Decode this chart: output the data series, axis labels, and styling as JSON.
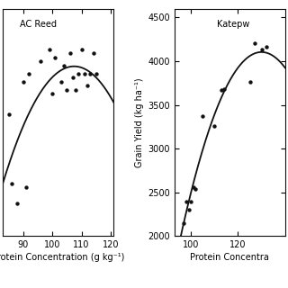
{
  "ac_reed": {
    "label": "AC Reed",
    "x": [
      85,
      86,
      88,
      90,
      91,
      92,
      96,
      99,
      100,
      101,
      103,
      104,
      105,
      106,
      107,
      108,
      109,
      110,
      111,
      112,
      113,
      114,
      115
    ],
    "y": [
      3300,
      2450,
      2200,
      3700,
      2400,
      3800,
      3950,
      4100,
      3550,
      4000,
      3700,
      3900,
      3600,
      4050,
      3750,
      3600,
      3800,
      4100,
      3800,
      3650,
      3800,
      4050,
      3800
    ],
    "xlim": [
      83,
      121
    ],
    "ylim": [
      1800,
      4600
    ],
    "xticks": [
      90,
      100,
      110,
      120
    ],
    "yticks": []
  },
  "katepwa": {
    "label": "Katepw",
    "x": [
      97,
      98,
      99,
      100,
      101,
      102,
      105,
      110,
      113,
      114,
      125,
      127,
      130,
      132
    ],
    "y": [
      2150,
      2400,
      2300,
      2400,
      2560,
      2540,
      3370,
      3260,
      3670,
      3680,
      3760,
      4200,
      4130,
      4160
    ],
    "xlim": [
      93,
      140
    ],
    "ylim": [
      2000,
      4600
    ],
    "xticks": [
      100,
      120
    ],
    "yticks": [
      2000,
      2500,
      3000,
      3500,
      4000,
      4500
    ]
  },
  "ylabel": "Grain Yield (kg ha⁻¹)",
  "xlabel_left": "rotein Concentration (g kg⁻¹)",
  "xlabel_right": "Protein Concentra",
  "background_color": "#ffffff",
  "linecolor": "#111111",
  "markercolor": "#111111"
}
